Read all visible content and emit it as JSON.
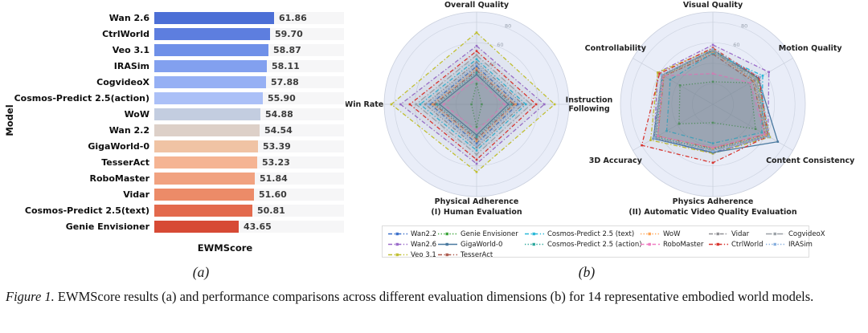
{
  "figure": {
    "panel_a_label": "(a)",
    "panel_b_label": "(b)",
    "caption_label": "Figure 1.",
    "caption_text": "EWMScore results (a) and performance comparisons across different evaluation dimensions (b) for 14 representative embodied world models."
  },
  "series_styles": {
    "Wan2.2": {
      "color": "#3a6fca",
      "dash": "dashdot"
    },
    "Wan2.6": {
      "color": "#9a6bc9",
      "dash": "dashdot"
    },
    "Veo 3.1": {
      "color": "#c0bf30",
      "dash": "dashdot"
    },
    "Genie Envisioner": {
      "color": "#3aa439",
      "dash": "dotted"
    },
    "GigaWorld-0": {
      "color": "#49799f",
      "dash": "solid"
    },
    "TesserAct": {
      "color": "#ad5a4e",
      "dash": "dashdot"
    },
    "Cosmos-Predict 2.5 (text)": {
      "color": "#29b8d8",
      "dash": "dashdot"
    },
    "Cosmos-Predict 2.5 (action)": {
      "color": "#2aa79c",
      "dash": "dotted"
    },
    "WoW": {
      "color": "#ffa352",
      "dash": "dotted"
    },
    "RoboMaster": {
      "color": "#f07dc2",
      "dash": "dashed"
    },
    "Vidar": {
      "color": "#8f8f93",
      "dash": "dashdotdot"
    },
    "CtrlWorld": {
      "color": "#d8342e",
      "dash": "dashdot"
    },
    "CogvideoX": {
      "color": "#9aa0a6",
      "dash": "longdashdot"
    },
    "IRASim": {
      "color": "#85aede",
      "dash": "dotted"
    }
  },
  "legend": {
    "items": [
      "Wan2.2",
      "Genie Envisioner",
      "Cosmos-Predict 2.5 (text)",
      "WoW",
      "Vidar",
      "CogvideoX",
      "Wan2.6",
      "GigaWorld-0",
      "Cosmos-Predict 2.5 (action)",
      "RoboMaster",
      "CtrlWorld",
      "IRASim",
      "Veo 3.1",
      "TesserAct"
    ]
  },
  "chart_data": [
    {
      "type": "bar",
      "title": "",
      "xlabel": "EWMScore",
      "ylabel": "Model",
      "xlim": [
        0,
        98
      ],
      "categories": [
        "Wan 2.6",
        "CtrlWorld",
        "Veo 3.1",
        "IRASim",
        "CogvideoX",
        "Cosmos-Predict 2.5(action)",
        "WoW",
        "Wan 2.2",
        "GigaWorld-0",
        "TesserAct",
        "RoboMaster",
        "Vidar",
        "Cosmos-Predict 2.5(text)",
        "Genie Envisioner"
      ],
      "values": [
        61.86,
        59.7,
        58.87,
        58.11,
        57.88,
        55.9,
        54.88,
        54.54,
        53.39,
        53.23,
        51.84,
        51.6,
        50.81,
        43.65
      ],
      "colors": [
        "#4c6fd6",
        "#5d7edf",
        "#6f90e8",
        "#82a0ef",
        "#96b0f4",
        "#abc0f7",
        "#c3cde0",
        "#ddd0c8",
        "#f0c3a4",
        "#f5b493",
        "#f1a280",
        "#ec8b68",
        "#e36a4d",
        "#d74a35"
      ]
    },
    {
      "type": "radar",
      "subtitle": "(I) Human Evaluation",
      "rticks": [
        0,
        20,
        40,
        60,
        80
      ],
      "rmax": 90,
      "axes": [
        [
          "Overall Quality"
        ],
        [
          "Instruction",
          "Following"
        ],
        [
          "Physical Adherence"
        ],
        [
          "Win Rate"
        ]
      ],
      "series": [
        {
          "name": "Wan2.2",
          "values": [
            37,
            40,
            38,
            45
          ]
        },
        {
          "name": "Wan2.6",
          "values": [
            57,
            66,
            58,
            74
          ]
        },
        {
          "name": "Veo 3.1",
          "values": [
            70,
            76,
            66,
            83
          ]
        },
        {
          "name": "Genie Envisioner",
          "values": [
            20,
            5,
            22,
            5
          ]
        },
        {
          "name": "GigaWorld-0",
          "values": [
            29,
            31,
            30,
            36
          ]
        },
        {
          "name": "TesserAct",
          "values": [
            33,
            36,
            34,
            41
          ]
        },
        {
          "name": "Cosmos-Predict 2.5 (text)",
          "values": [
            44,
            48,
            45,
            55
          ]
        },
        {
          "name": "Cosmos-Predict 2.5 (action)",
          "values": [
            31,
            34,
            32,
            39
          ]
        },
        {
          "name": "WoW",
          "values": [
            35,
            38,
            36,
            43
          ]
        },
        {
          "name": "RoboMaster",
          "values": [
            25,
            27,
            26,
            32
          ]
        },
        {
          "name": "Vidar",
          "values": [
            41,
            45,
            42,
            50
          ]
        },
        {
          "name": "CtrlWorld",
          "values": [
            52,
            58,
            54,
            65
          ]
        },
        {
          "name": "CogvideoX",
          "values": [
            48,
            53,
            49,
            59
          ]
        },
        {
          "name": "IRASim",
          "values": [
            39,
            42,
            40,
            47
          ]
        }
      ]
    },
    {
      "type": "radar",
      "subtitle": "(II) Automatic Video Quality Evaluation",
      "rticks": [
        0,
        20,
        40,
        60,
        80
      ],
      "rmax": 90,
      "axes": [
        [
          "Visual Quality"
        ],
        [
          "Motion Quality"
        ],
        [
          "Content Consistency"
        ],
        [
          "Physics Adherence"
        ],
        [
          "3D Accuracy"
        ],
        [
          "Controllability"
        ]
      ],
      "series": [
        {
          "name": "Wan2.2",
          "values": [
            53,
            51,
            64,
            47,
            66,
            57
          ]
        },
        {
          "name": "Wan2.6",
          "values": [
            58,
            63,
            62,
            48,
            66,
            62
          ]
        },
        {
          "name": "Veo 3.1",
          "values": [
            54,
            50,
            64,
            48,
            70,
            62
          ]
        },
        {
          "name": "Genie Envisioner",
          "values": [
            22,
            42,
            48,
            18,
            38,
            37
          ]
        },
        {
          "name": "GigaWorld-0",
          "values": [
            53,
            51,
            73,
            47,
            67,
            57
          ]
        },
        {
          "name": "TesserAct",
          "values": [
            49,
            45,
            59,
            43,
            62,
            55
          ]
        },
        {
          "name": "Cosmos-Predict 2.5 (text)",
          "values": [
            50,
            56,
            55,
            38,
            52,
            48
          ]
        },
        {
          "name": "Cosmos-Predict 2.5 (action)",
          "values": [
            52,
            49,
            61,
            44,
            64,
            56
          ]
        },
        {
          "name": "WoW",
          "values": [
            51,
            46,
            60,
            43,
            62,
            55
          ]
        },
        {
          "name": "RoboMaster",
          "values": [
            30,
            42,
            58,
            42,
            62,
            56
          ]
        },
        {
          "name": "Vidar",
          "values": [
            52,
            47,
            62,
            45,
            66,
            57
          ]
        },
        {
          "name": "CtrlWorld",
          "values": [
            55,
            52,
            62,
            57,
            80,
            60
          ]
        },
        {
          "name": "CogvideoX",
          "values": [
            53,
            49,
            62,
            45,
            65,
            57
          ]
        },
        {
          "name": "IRASim",
          "values": [
            54,
            53,
            63,
            46,
            66,
            58
          ]
        }
      ]
    }
  ]
}
